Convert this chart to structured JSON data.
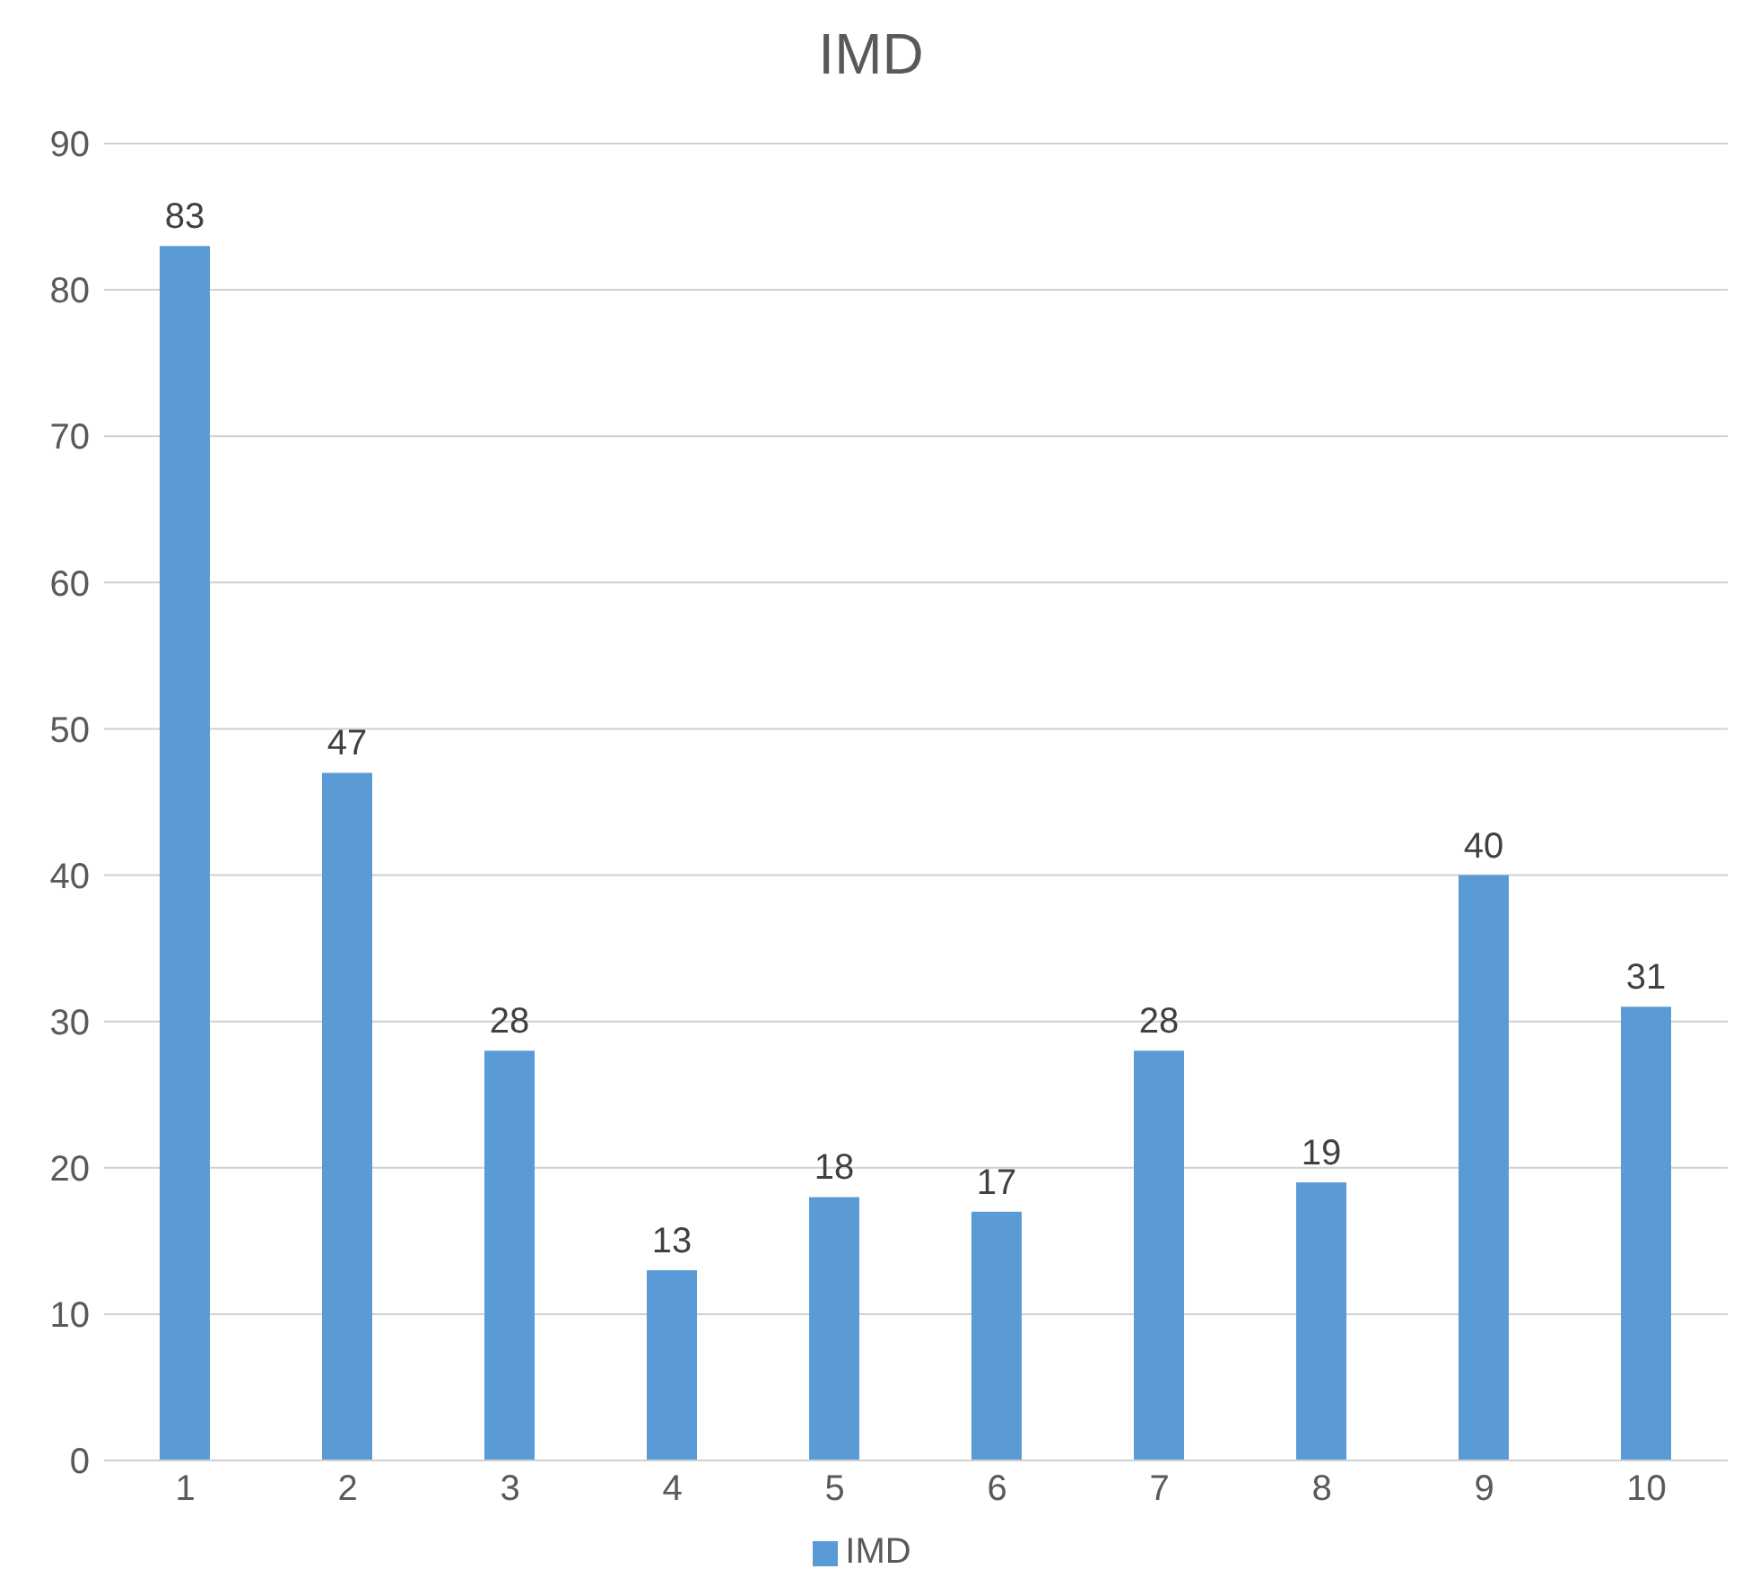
{
  "chart_data": {
    "type": "bar",
    "title": "IMD",
    "categories": [
      "1",
      "2",
      "3",
      "4",
      "5",
      "6",
      "7",
      "8",
      "9",
      "10"
    ],
    "series": [
      {
        "name": "IMD",
        "color": "#5b9bd5",
        "values": [
          83,
          47,
          28,
          13,
          18,
          17,
          28,
          19,
          40,
          31
        ]
      }
    ],
    "ylim": [
      0,
      90
    ],
    "yticks": [
      0,
      10,
      20,
      30,
      40,
      50,
      60,
      70,
      80,
      90
    ],
    "grid": "y",
    "legend": "bottom",
    "data_labels": true
  }
}
